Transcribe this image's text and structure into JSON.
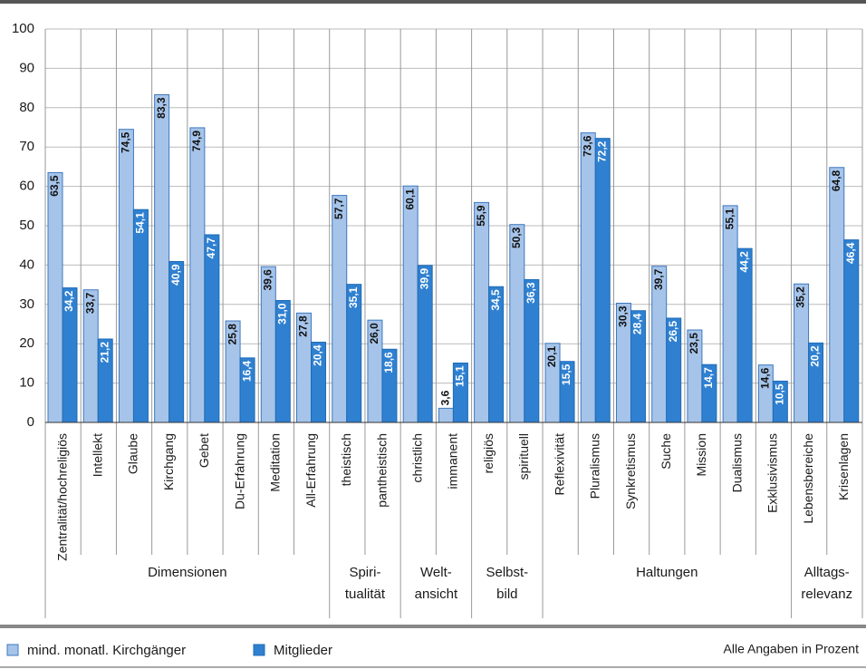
{
  "chart_data": {
    "type": "bar",
    "groups": [
      {
        "label": [
          "Dimensionen"
        ],
        "categories": [
          "Zentralität/hochreligiös",
          "Intellekt",
          "Glaube",
          "Kirchgang",
          "Gebet",
          "Du-Erfahrung",
          "Meditation",
          "All-Erfahrung"
        ]
      },
      {
        "label": [
          "Spiri-",
          "tualität"
        ],
        "categories": [
          "theistisch",
          "pantheistisch"
        ]
      },
      {
        "label": [
          "Welt-",
          "ansicht"
        ],
        "categories": [
          "christlich",
          "immanent"
        ]
      },
      {
        "label": [
          "Selbst-",
          "bild"
        ],
        "categories": [
          "religiös",
          "spirituell"
        ]
      },
      {
        "label": [
          "Haltungen"
        ],
        "categories": [
          "Reflexivität",
          "Pluralismus",
          "Synkretismus",
          "Suche",
          "Mission",
          "Dualismus",
          "Exklusivismus"
        ]
      },
      {
        "label": [
          "Alltags-",
          "relevanz"
        ],
        "categories": [
          "Lebensbereiche",
          "Krisenlagen"
        ]
      }
    ],
    "series": [
      {
        "name": "mind. monatl. Kirchgänger",
        "color": "#a6c4e9",
        "values": [
          63.5,
          33.7,
          74.5,
          83.3,
          74.9,
          25.8,
          39.6,
          27.8,
          57.7,
          26.0,
          60.1,
          3.6,
          55.9,
          50.3,
          20.1,
          73.6,
          30.3,
          39.7,
          23.5,
          55.1,
          14.6,
          35.2,
          64.8
        ],
        "value_labels": [
          "63,5",
          "33,7",
          "74,5",
          "83,3",
          "74,9",
          "25,8",
          "39,6",
          "27,8",
          "57,7",
          "26,0",
          "60,1",
          "3,6",
          "55,9",
          "50,3",
          "20,1",
          "73,6",
          "30,3",
          "39,7",
          "23,5",
          "55,1",
          "14,6",
          "35,2",
          "64,8"
        ]
      },
      {
        "name": "Mitglieder",
        "color": "#2f80d0",
        "values": [
          34.2,
          21.2,
          54.1,
          40.9,
          47.7,
          16.4,
          31.0,
          20.4,
          35.1,
          18.6,
          39.9,
          15.1,
          34.5,
          36.3,
          15.5,
          72.2,
          28.4,
          26.5,
          14.7,
          44.2,
          10.5,
          20.2,
          46.4
        ],
        "value_labels": [
          "34,2",
          "21,2",
          "54,1",
          "40,9",
          "47,7",
          "16,4",
          "31,0",
          "20,4",
          "35,1",
          "18,6",
          "39,9",
          "15,1",
          "34,5",
          "36,3",
          "15,5",
          "72,2",
          "28,4",
          "26,5",
          "14,7",
          "44,2",
          "10,5",
          "20,2",
          "46,4"
        ]
      }
    ],
    "ylim": [
      0,
      100
    ],
    "yticks": [
      0,
      10,
      20,
      30,
      40,
      50,
      60,
      70,
      80,
      90,
      100
    ],
    "grid": true,
    "note": "Alle Angaben in Prozent"
  }
}
